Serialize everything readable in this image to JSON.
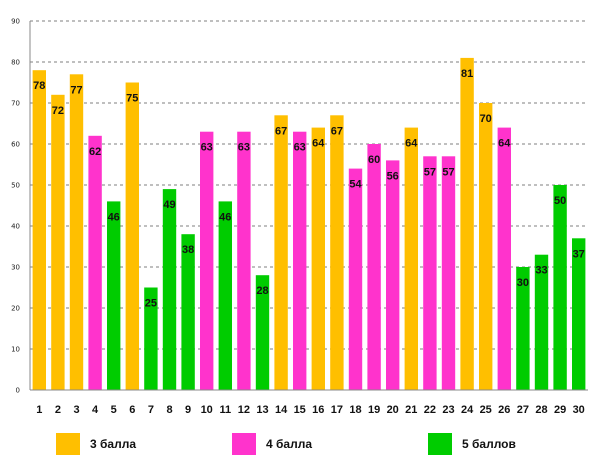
{
  "chart_data": {
    "type": "bar",
    "categories": [
      "1",
      "2",
      "3",
      "4",
      "5",
      "6",
      "7",
      "8",
      "9",
      "10",
      "11",
      "12",
      "13",
      "14",
      "15",
      "16",
      "17",
      "18",
      "19",
      "20",
      "21",
      "22",
      "23",
      "24",
      "25",
      "26",
      "27",
      "28",
      "29",
      "30"
    ],
    "values": [
      78,
      72,
      77,
      62,
      46,
      75,
      25,
      49,
      38,
      63,
      46,
      63,
      28,
      67,
      63,
      64,
      67,
      54,
      60,
      56,
      64,
      57,
      57,
      81,
      70,
      64,
      30,
      33,
      50,
      37
    ],
    "groups": [
      "g3",
      "g3",
      "g3",
      "g4",
      "g5",
      "g3",
      "g5",
      "g5",
      "g5",
      "g4",
      "g5",
      "g4",
      "g5",
      "g3",
      "g4",
      "g3",
      "g3",
      "g4",
      "g4",
      "g4",
      "g3",
      "g4",
      "g4",
      "g3",
      "g3",
      "g4",
      "g5",
      "g5",
      "g5",
      "g5"
    ],
    "ylim": [
      0,
      90
    ],
    "yticks": [
      "0",
      "10",
      "20",
      "30",
      "40",
      "50",
      "60",
      "70",
      "80",
      "90"
    ],
    "grid": "horizontal dashed",
    "legend_position": "bottom",
    "legend": [
      {
        "key": "g3",
        "label": "3 балла",
        "color": "#FFBF00"
      },
      {
        "key": "g4",
        "label": "4 балла",
        "color": "#FF33CC"
      },
      {
        "key": "g5",
        "label": "5 баллов",
        "color": "#00CC00"
      }
    ]
  }
}
